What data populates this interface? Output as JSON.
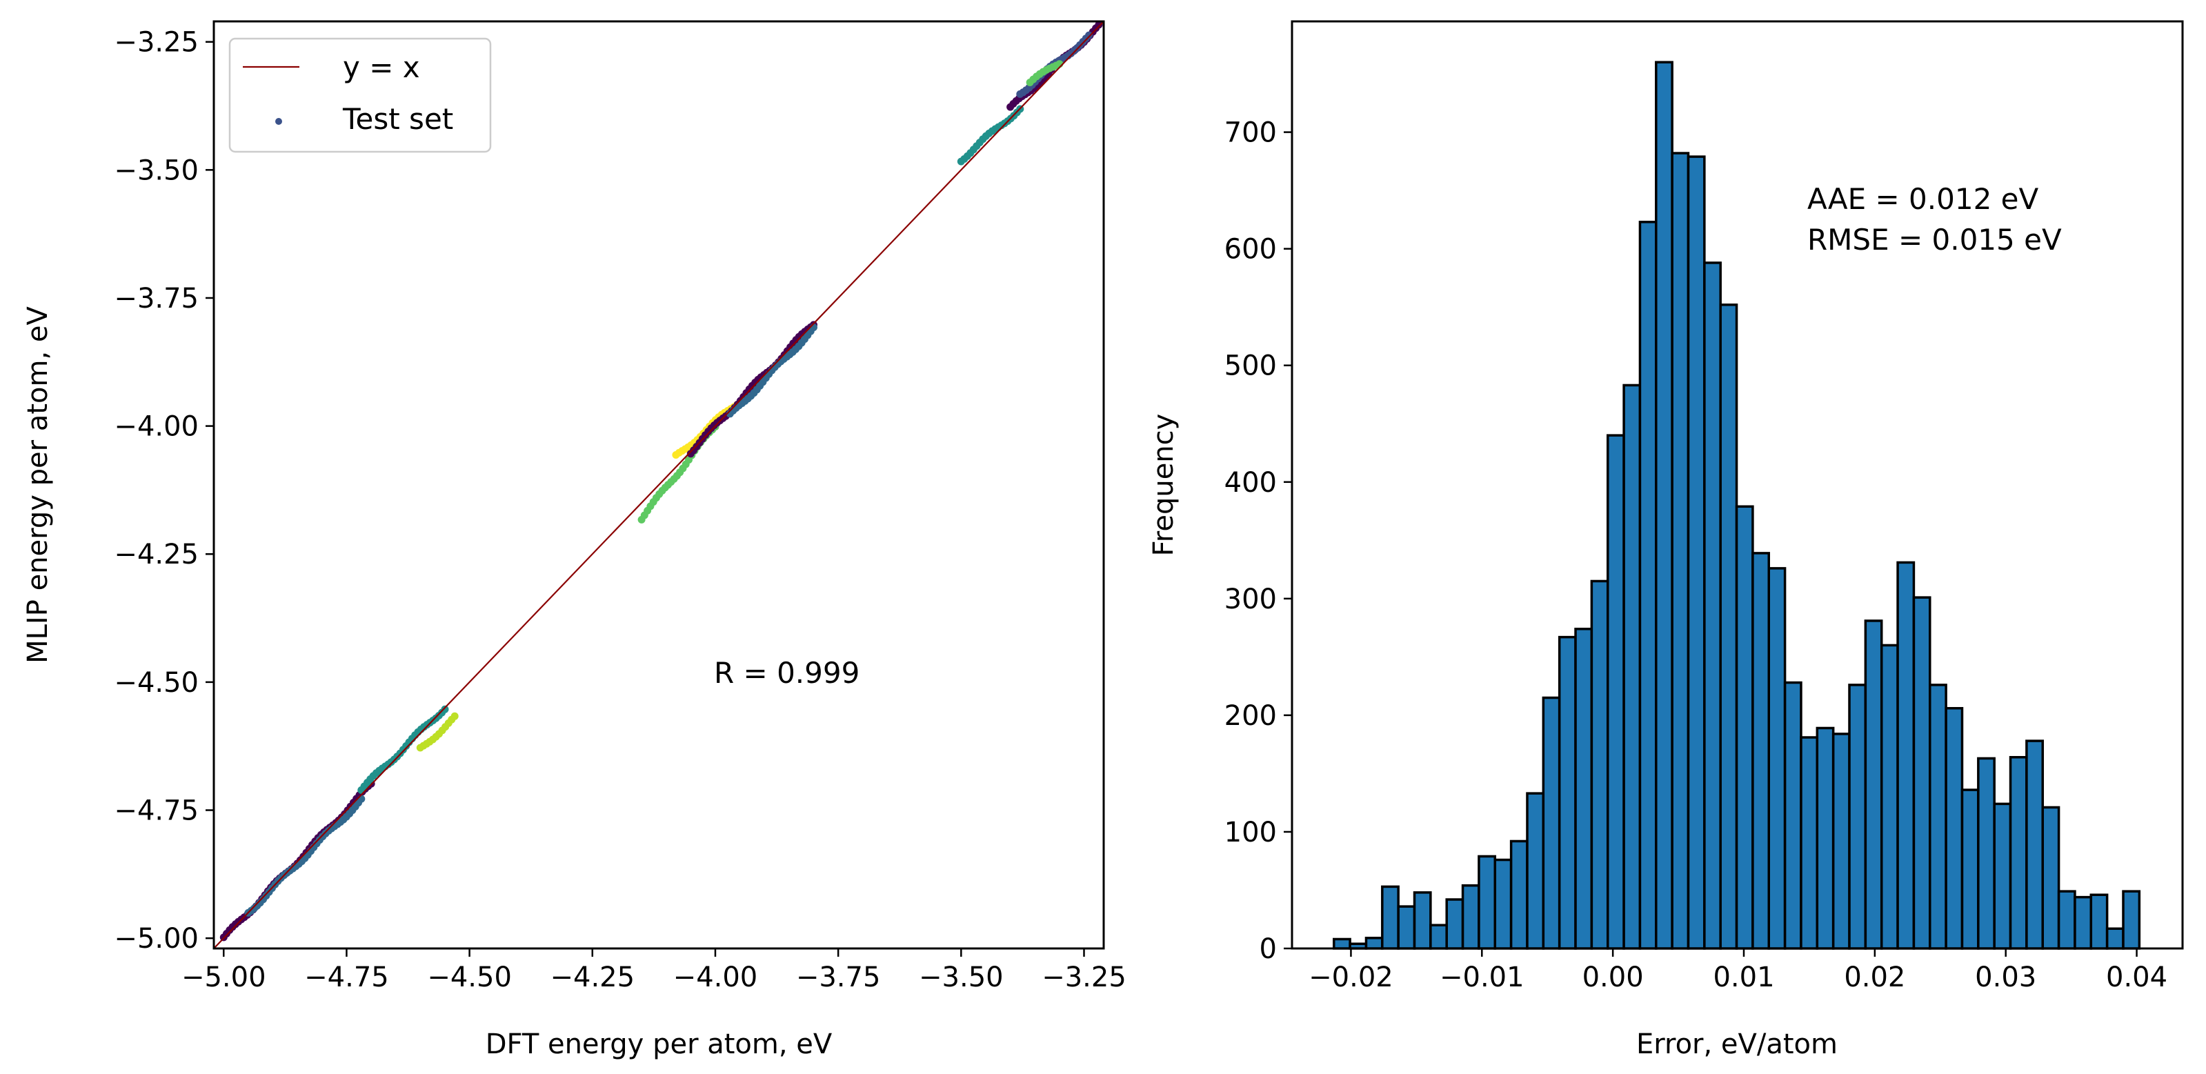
{
  "chart_data": [
    {
      "type": "scatter",
      "xlabel": "DFT energy per atom, eV",
      "ylabel": "MLIP energy per atom, eV",
      "xlim": [
        -5.02,
        -3.21
      ],
      "ylim": [
        -5.02,
        -3.21
      ],
      "xticks": [
        "−5.00",
        "−4.75",
        "−4.50",
        "−4.25",
        "−4.00",
        "−3.75",
        "−3.50",
        "−3.25"
      ],
      "xtick_values": [
        -5.0,
        -4.75,
        -4.5,
        -4.25,
        -4.0,
        -3.75,
        -3.5,
        -3.25
      ],
      "yticks": [
        "−5.00",
        "−4.75",
        "−4.50",
        "−4.25",
        "−4.00",
        "−3.75",
        "−3.50",
        "−3.25"
      ],
      "ytick_values": [
        -5.0,
        -4.75,
        -4.5,
        -4.25,
        -4.0,
        -3.75,
        -3.5,
        -3.25
      ],
      "legend": {
        "placement": "top-left",
        "entries": [
          "y = x",
          "Test set"
        ]
      },
      "annotation": "R = 0.999",
      "reference_line": {
        "name": "y = x",
        "color": "#8b0000"
      },
      "series": [
        {
          "name": "Test set",
          "color": "#3b528b",
          "clusters": [
            {
              "x": [
                -5.0,
                -4.7
              ],
              "y": [
                -5.0,
                -4.7
              ],
              "color": "#440154"
            },
            {
              "x": [
                -4.95,
                -4.72
              ],
              "y": [
                -4.95,
                -4.73
              ],
              "color": "#31688e"
            },
            {
              "x": [
                -4.72,
                -4.55
              ],
              "y": [
                -4.71,
                -4.55
              ],
              "color": "#21918c"
            },
            {
              "x": [
                -4.6,
                -4.53
              ],
              "y": [
                -4.63,
                -4.57
              ],
              "color": "#bddf26"
            },
            {
              "x": [
                -4.15,
                -4.0
              ],
              "y": [
                -4.18,
                -4.0
              ],
              "color": "#5ec962"
            },
            {
              "x": [
                -4.08,
                -3.95
              ],
              "y": [
                -4.06,
                -3.95
              ],
              "color": "#fde725"
            },
            {
              "x": [
                -4.05,
                -3.8
              ],
              "y": [
                -4.05,
                -3.8
              ],
              "color": "#440154"
            },
            {
              "x": [
                -3.97,
                -3.8
              ],
              "y": [
                -3.98,
                -3.81
              ],
              "color": "#31688e"
            },
            {
              "x": [
                -3.5,
                -3.38
              ],
              "y": [
                -3.48,
                -3.38
              ],
              "color": "#21918c"
            },
            {
              "x": [
                -3.4,
                -3.22
              ],
              "y": [
                -3.38,
                -3.22
              ],
              "color": "#440154"
            },
            {
              "x": [
                -3.38,
                -3.24
              ],
              "y": [
                -3.35,
                -3.24
              ],
              "color": "#3b528b"
            },
            {
              "x": [
                -3.36,
                -3.3
              ],
              "y": [
                -3.33,
                -3.29
              ],
              "color": "#5ec962"
            }
          ]
        }
      ]
    },
    {
      "type": "bar",
      "xlabel": "Error, eV/atom",
      "ylabel": "Frequency",
      "xlim": [
        -0.0245,
        0.0435
      ],
      "ylim": [
        0,
        795
      ],
      "xticks": [
        "−0.02",
        "−0.01",
        "0.00",
        "0.01",
        "0.02",
        "0.03",
        "0.04"
      ],
      "xtick_values": [
        -0.02,
        -0.01,
        0.0,
        0.01,
        0.02,
        0.03,
        0.04
      ],
      "yticks": [
        "0",
        "100",
        "200",
        "300",
        "400",
        "500",
        "600",
        "700"
      ],
      "ytick_values": [
        0,
        100,
        200,
        300,
        400,
        500,
        600,
        700
      ],
      "bar_color": "#1f77b4",
      "bin_start": -0.0213,
      "bin_width": 0.00123,
      "values": [
        8,
        4,
        9,
        53,
        36,
        48,
        20,
        42,
        54,
        79,
        76,
        92,
        133,
        215,
        267,
        274,
        315,
        440,
        483,
        623,
        760,
        682,
        679,
        588,
        552,
        379,
        339,
        326,
        228,
        181,
        189,
        184,
        226,
        281,
        260,
        331,
        301,
        226,
        206,
        136,
        163,
        124,
        164,
        178,
        121,
        49,
        44,
        46,
        17,
        49
      ],
      "annotations": [
        "AAE = 0.012 eV",
        "RMSE = 0.015 eV"
      ]
    }
  ]
}
